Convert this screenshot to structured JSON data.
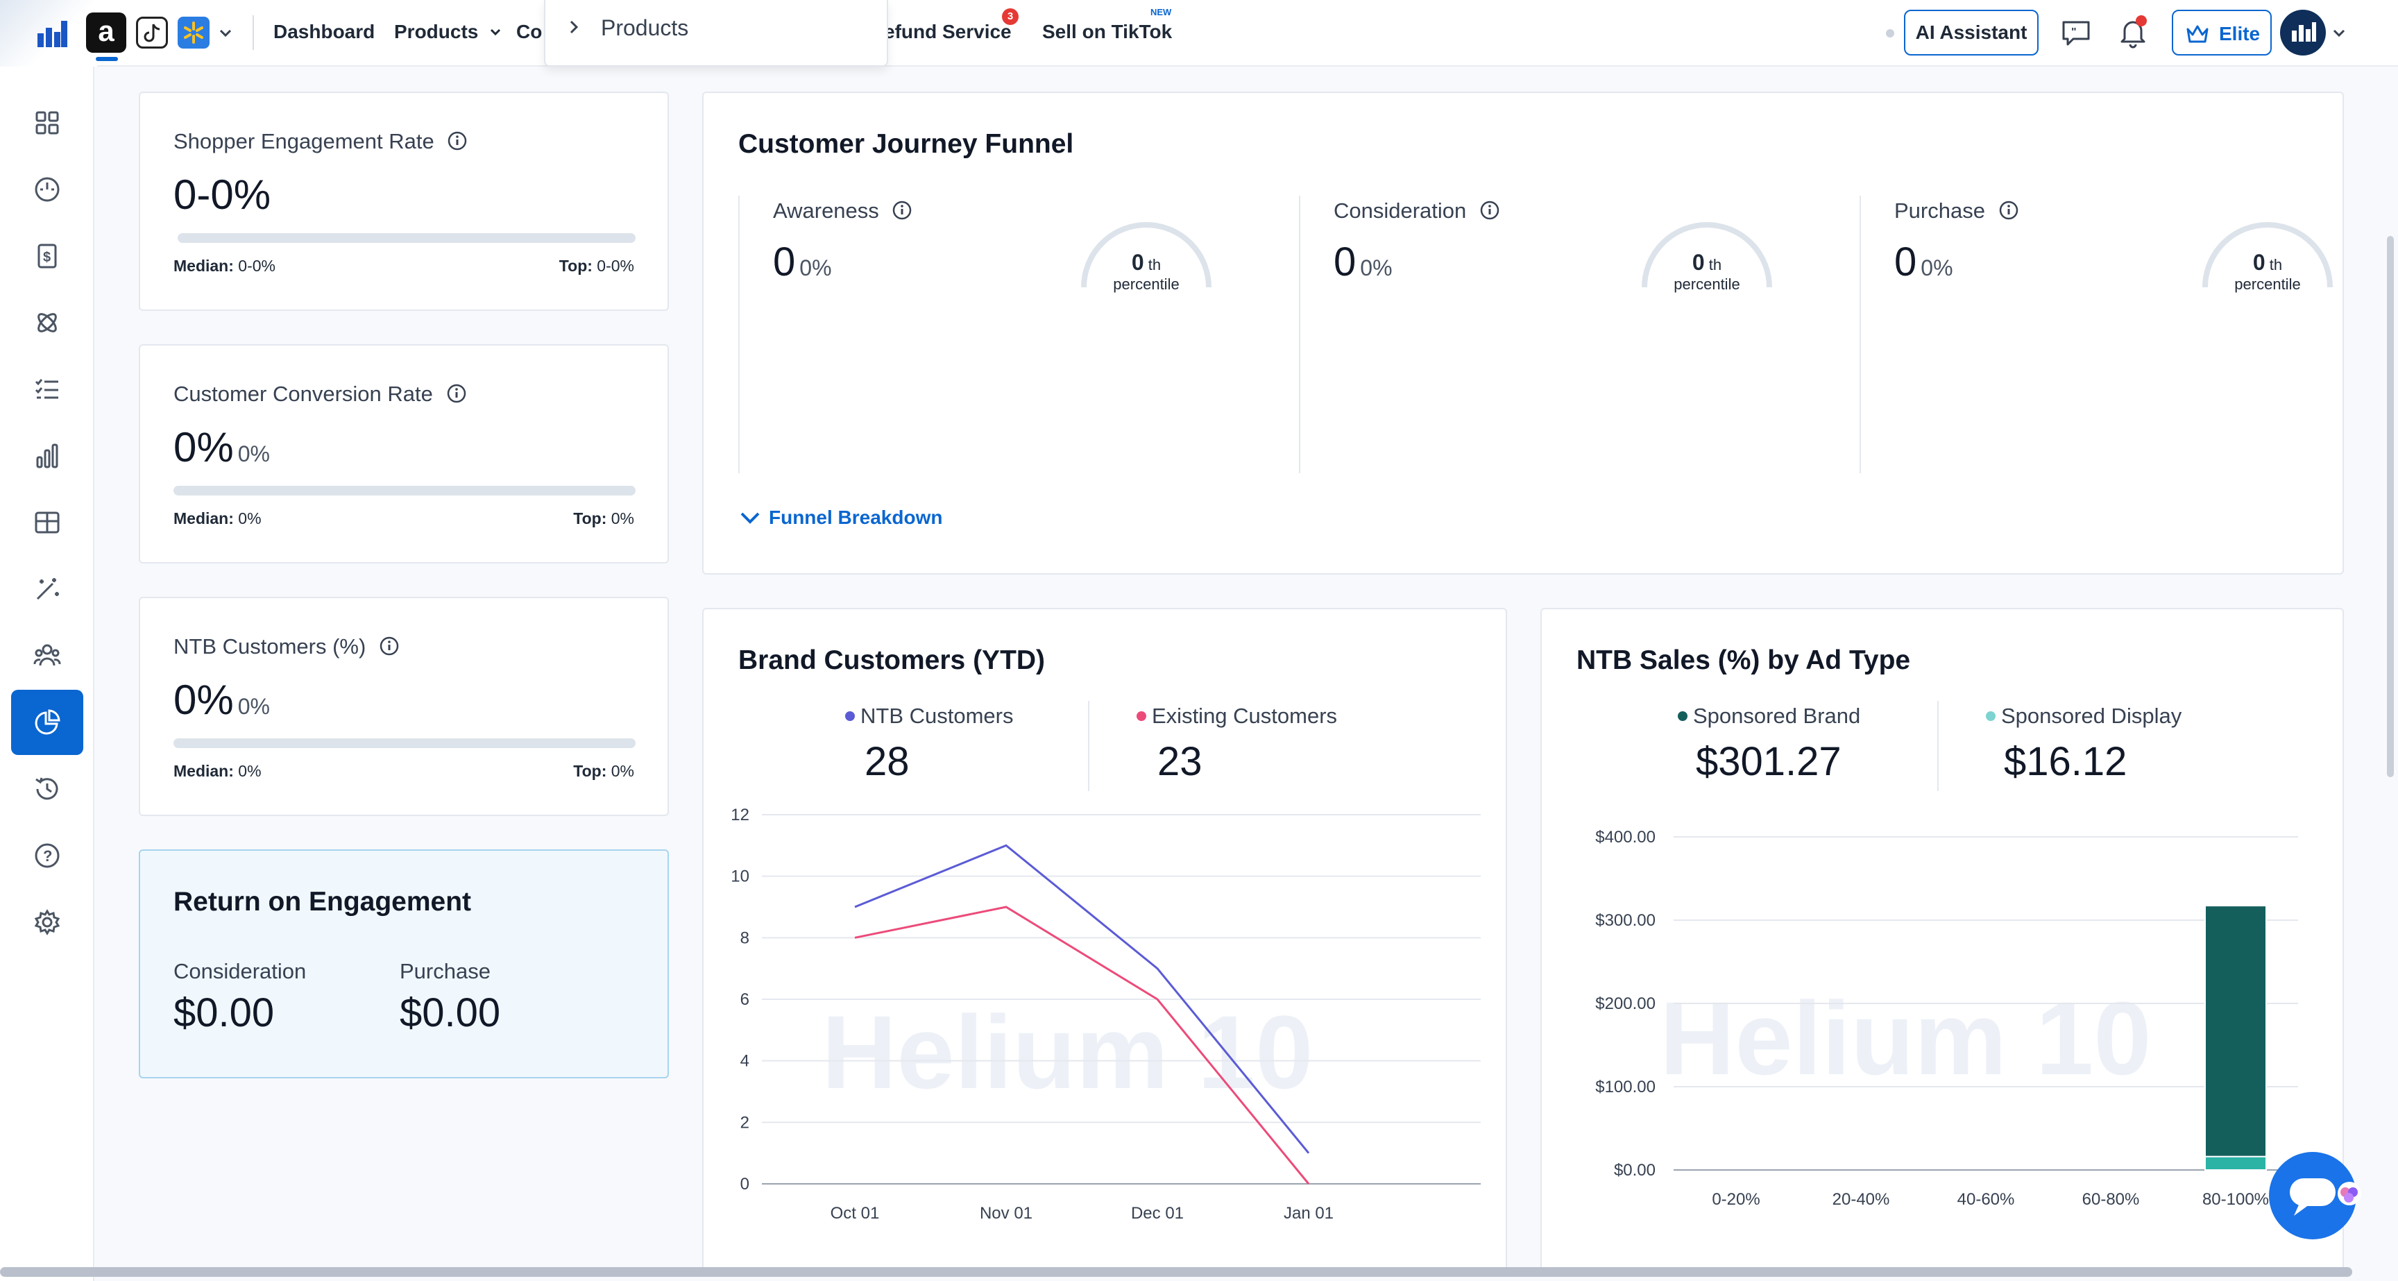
{
  "nav": {
    "items": [
      "Dashboard",
      "Products",
      "Co",
      "efund Service",
      "Sell on TikTok"
    ],
    "badge_count": "3",
    "new_tag": "NEW",
    "amazon_letter": "a",
    "dropdown_label": "Products",
    "ai_assistant": "AI Assistant",
    "elite": "Elite"
  },
  "sidebar": {
    "icons": [
      "dashboard-grid-icon",
      "speedometer-icon",
      "dollar-icon",
      "atom-icon",
      "checklist-icon",
      "bar-chart-icon",
      "table-icon",
      "magic-wand-icon",
      "users-icon",
      "pie-chart-icon",
      "history-icon",
      "help-icon",
      "settings-icon"
    ],
    "active_index": 9
  },
  "metrics": [
    {
      "title": "Shopper Engagement Rate",
      "value": "0-0%",
      "secondary": "",
      "median_label": "Median:",
      "median": "0-0%",
      "top_label": "Top:",
      "top": "0-0%"
    },
    {
      "title": "Customer Conversion Rate",
      "value": "0%",
      "secondary": "0%",
      "median_label": "Median:",
      "median": "0%",
      "top_label": "Top:",
      "top": "0%"
    },
    {
      "title": "NTB Customers (%)",
      "value": "0%",
      "secondary": "0%",
      "median_label": "Median:",
      "median": "0%",
      "top_label": "Top:",
      "top": "0%"
    }
  ],
  "roe": {
    "title": "Return on Engagement",
    "items": [
      {
        "label": "Consideration",
        "value": "$0.00"
      },
      {
        "label": "Purchase",
        "value": "$0.00"
      }
    ]
  },
  "funnel": {
    "title": "Customer Journey Funnel",
    "stages": [
      {
        "label": "Awareness",
        "count": "0",
        "pct": "0%",
        "percentile": "0",
        "suffix": "th",
        "percentile_label": "percentile"
      },
      {
        "label": "Consideration",
        "count": "0",
        "pct": "0%",
        "percentile": "0",
        "suffix": "th",
        "percentile_label": "percentile"
      },
      {
        "label": "Purchase",
        "count": "0",
        "pct": "0%",
        "percentile": "0",
        "suffix": "th",
        "percentile_label": "percentile"
      }
    ],
    "breakdown_label": "Funnel Breakdown"
  },
  "brand_customers": {
    "title": "Brand Customers (YTD)",
    "legend": [
      {
        "name": "NTB Customers",
        "value": "28",
        "color": "#5b5bd6"
      },
      {
        "name": "Existing Customers",
        "value": "23",
        "color": "#ec4b7a"
      }
    ]
  },
  "ntb_sales": {
    "title": "NTB Sales (%) by Ad Type",
    "legend": [
      {
        "name": "Sponsored Brand",
        "value": "$301.27",
        "color": "#145f5c"
      },
      {
        "name": "Sponsored Display",
        "value": "$16.12",
        "color": "#7dd3cf"
      }
    ]
  },
  "chart_data": [
    {
      "type": "line",
      "x": [
        "Oct 01",
        "Nov 01",
        "Dec 01",
        "Jan 01"
      ],
      "series": [
        {
          "name": "NTB Customers",
          "values": [
            9,
            11,
            7,
            1
          ],
          "color": "#5b5bd6"
        },
        {
          "name": "Existing Customers",
          "values": [
            8,
            9,
            6,
            0
          ],
          "color": "#ec4b7a"
        }
      ],
      "yticks": [
        "0",
        "2",
        "4",
        "6",
        "8",
        "10",
        "12"
      ],
      "ylim": [
        0,
        12
      ],
      "grid": true,
      "watermark": "Helium 10"
    },
    {
      "type": "bar",
      "stacked": true,
      "categories": [
        "0-20%",
        "20-40%",
        "40-60%",
        "60-80%",
        "80-100%"
      ],
      "series": [
        {
          "name": "Sponsored Display",
          "values": [
            0,
            0,
            0,
            0,
            16.12
          ],
          "color": "#2bb3a6"
        },
        {
          "name": "Sponsored Brand",
          "values": [
            0,
            0,
            0,
            0,
            301.27
          ],
          "color": "#145f5c"
        }
      ],
      "yticks": [
        "$0.00",
        "$100.00",
        "$200.00",
        "$300.00",
        "$400.00"
      ],
      "ylim": [
        0,
        400
      ],
      "grid": true,
      "watermark": "Helium 10"
    }
  ]
}
